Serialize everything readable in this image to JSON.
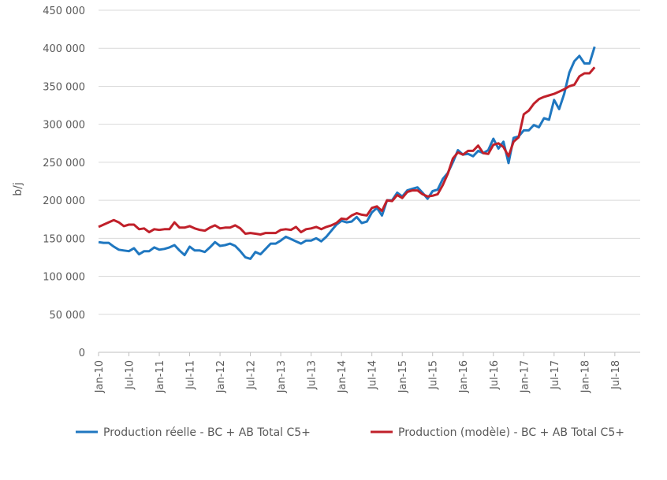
{
  "chart_data": {
    "type": "line",
    "title": "",
    "xlabel": "",
    "ylabel": "b/j",
    "ylim": [
      0,
      450000
    ],
    "yticks": [
      0,
      50000,
      100000,
      150000,
      200000,
      250000,
      300000,
      350000,
      400000,
      450000
    ],
    "ytick_labels": [
      "0",
      "50 000",
      "100 000",
      "150 000",
      "200 000",
      "250 000",
      "300 000",
      "350 000",
      "400 000",
      "450 000"
    ],
    "xtick_labels": [
      "Jan-10",
      "Jul-10",
      "Jan-11",
      "Jul-11",
      "Jan-12",
      "Jul-12",
      "Jan-13",
      "Jul-13",
      "Jan-14",
      "Jul-14",
      "Jan-15",
      "Jul-15",
      "Jan-16",
      "Jul-16",
      "Jan-17",
      "Jul-17",
      "Jan-18",
      "Jul-18"
    ],
    "x_start": "Jan-10",
    "x_frequency": "monthly",
    "grid": "horizontal",
    "legend_placement": "bottom",
    "series": [
      {
        "name": "Production réelle - BC + AB Total C5+",
        "color": "#1f77c0",
        "values": [
          145000,
          144000,
          144000,
          139000,
          135000,
          134000,
          133000,
          137000,
          129000,
          133000,
          133000,
          138000,
          135000,
          136000,
          138000,
          141000,
          134000,
          128000,
          139000,
          134000,
          134000,
          132000,
          138000,
          145000,
          140000,
          141000,
          143000,
          140000,
          133000,
          125000,
          123000,
          132000,
          129000,
          136000,
          143000,
          143000,
          147000,
          152000,
          149000,
          146000,
          143000,
          147000,
          147000,
          150000,
          146000,
          152000,
          160000,
          168000,
          173000,
          171000,
          172000,
          178000,
          170000,
          172000,
          184000,
          190000,
          180000,
          200000,
          200000,
          210000,
          205000,
          213000,
          215000,
          217000,
          210000,
          202000,
          212000,
          214000,
          228000,
          236000,
          250000,
          266000,
          260000,
          261000,
          258000,
          265000,
          262000,
          266000,
          281000,
          268000,
          277000,
          249000,
          282000,
          284000,
          292000,
          292000,
          299000,
          296000,
          308000,
          306000,
          332000,
          320000,
          340000,
          368000,
          383000,
          390000,
          380000,
          380000,
          402000
        ]
      },
      {
        "name": "Production (modèle) - BC + AB Total C5+",
        "color": "#c0202a",
        "values": [
          165000,
          168000,
          171000,
          174000,
          171000,
          166000,
          168000,
          168000,
          162000,
          163000,
          158000,
          162000,
          161000,
          162000,
          162000,
          171000,
          164000,
          164000,
          166000,
          163000,
          161000,
          160000,
          164000,
          167000,
          163000,
          164000,
          164000,
          167000,
          163000,
          156000,
          157000,
          156000,
          155000,
          157000,
          157000,
          157000,
          161000,
          162000,
          161000,
          165000,
          158000,
          162000,
          163000,
          165000,
          162000,
          165000,
          167000,
          170000,
          176000,
          175000,
          180000,
          183000,
          181000,
          180000,
          190000,
          192000,
          186000,
          200000,
          199000,
          207000,
          203000,
          211000,
          213000,
          213000,
          208000,
          205000,
          206000,
          208000,
          220000,
          235000,
          255000,
          263000,
          260000,
          265000,
          265000,
          272000,
          262000,
          261000,
          273000,
          275000,
          270000,
          258000,
          277000,
          283000,
          313000,
          318000,
          327000,
          333000,
          336000,
          338000,
          340000,
          343000,
          346000,
          350000,
          352000,
          363000,
          367000,
          367000,
          375000
        ]
      }
    ]
  }
}
